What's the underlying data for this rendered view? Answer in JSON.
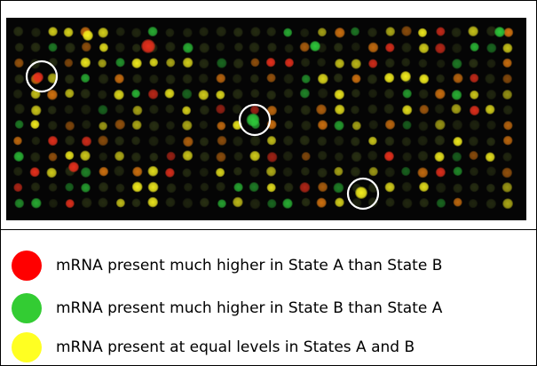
{
  "microarray": {
    "spot_colors": {
      "red": "#e8301c",
      "green": "#2ec83a",
      "yellow": "#f4ee1e",
      "orange": "#e07a10",
      "dark": "#2c3414"
    },
    "highlight_circle_color": "#ffffff"
  },
  "legend": [
    {
      "color": "#ff0000",
      "label": "mRNA present much higher in State A than State B"
    },
    {
      "color": "#33cc33",
      "label": "mRNA present much higher in State B than State A"
    },
    {
      "color": "#ffff22",
      "label": "mRNA present at equal levels in States A and B"
    }
  ]
}
